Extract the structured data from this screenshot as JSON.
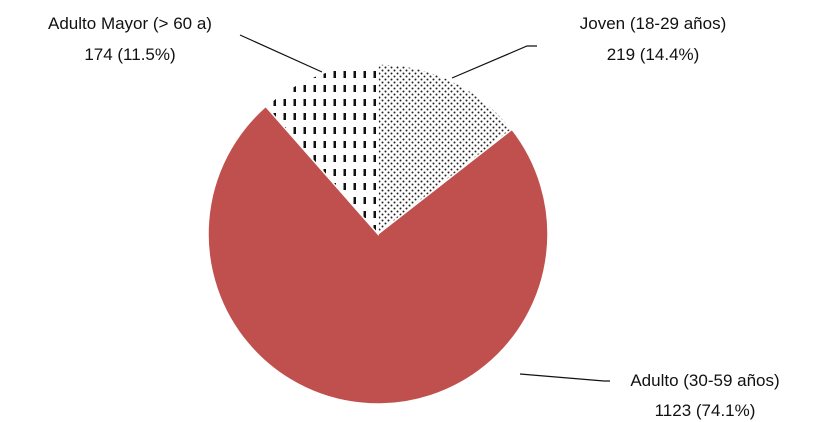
{
  "chart_data": {
    "type": "pie",
    "slices": [
      {
        "label": "Joven (18-29 años)",
        "value_label": "219 (14.4%)",
        "value": 219,
        "percent": 14.4,
        "fill": "pattern-dots"
      },
      {
        "label": "Adulto (30-59 años)",
        "value_label": "1123 (74.1%)",
        "value": 1123,
        "percent": 74.1,
        "fill": "#C0504D"
      },
      {
        "label": "Adulto Mayor (> 60 a)",
        "value_label": "174 (11.5%)",
        "value": 174,
        "percent": 11.5,
        "fill": "pattern-dashes"
      }
    ],
    "title": "",
    "legend": "none",
    "colors": {
      "adulto": "#C0504D",
      "pattern_ink": "#222222",
      "border": "#ffffff"
    }
  }
}
